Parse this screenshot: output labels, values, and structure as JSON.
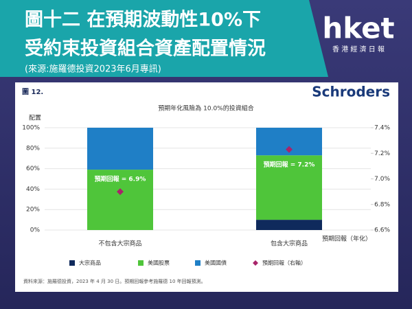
{
  "header": {
    "title_lines": [
      "圖十二 在預期波動性10%下",
      "受約束投資組合資產配置情況"
    ],
    "source": "(來源:施羅德投資2023年6月專訊)",
    "logo": "hket",
    "logo_sub": "香 港 經 濟 日 報"
  },
  "figure": {
    "number": "圖 12.",
    "brand": "Schroders",
    "note": "資料來源：施羅德投資，2023 年 4 月 30 日。預期回報參考施羅德 10 年回報預測。"
  },
  "chart_data": {
    "type": "stacked_bar",
    "title": "預期年化風險為 10.0%的投資組合",
    "y_label": "配置",
    "y2_label": "預期回報（年化）",
    "categories": [
      "不包含大宗商品",
      "包含大宗商品"
    ],
    "series": [
      {
        "name": "大宗商品",
        "color": "#0f2a5c",
        "values": [
          0,
          10
        ]
      },
      {
        "name": "美國股票",
        "color": "#4fc53a",
        "values": [
          59,
          63
        ]
      },
      {
        "name": "美國國債",
        "color": "#1f7fc6",
        "values": [
          41,
          27
        ]
      },
      {
        "name": "預期回報（右軸）",
        "color": "#a8246a",
        "axis": "y2",
        "values": [
          6.9,
          7.23
        ],
        "value_labels": [
          "預期回報 = 6.9%",
          "預期回報 = 7.2%"
        ]
      }
    ],
    "ylim": [
      0,
      100
    ],
    "yticks": [
      {
        "value": 0,
        "label": "0%"
      },
      {
        "value": 20,
        "label": "20%"
      },
      {
        "value": 40,
        "label": "40%"
      },
      {
        "value": 60,
        "label": "60%"
      },
      {
        "value": 80,
        "label": "80%"
      },
      {
        "value": 100,
        "label": "100%"
      }
    ],
    "y2lim": [
      6.6,
      7.4
    ],
    "y2ticks": [
      {
        "value": 6.6,
        "label": "6.6%"
      },
      {
        "value": 6.8,
        "label": "6.8%"
      },
      {
        "value": 7.0,
        "label": "7.0%"
      },
      {
        "value": 7.2,
        "label": "7.2%"
      },
      {
        "value": 7.4,
        "label": "7.4%"
      }
    ],
    "grid": true
  }
}
